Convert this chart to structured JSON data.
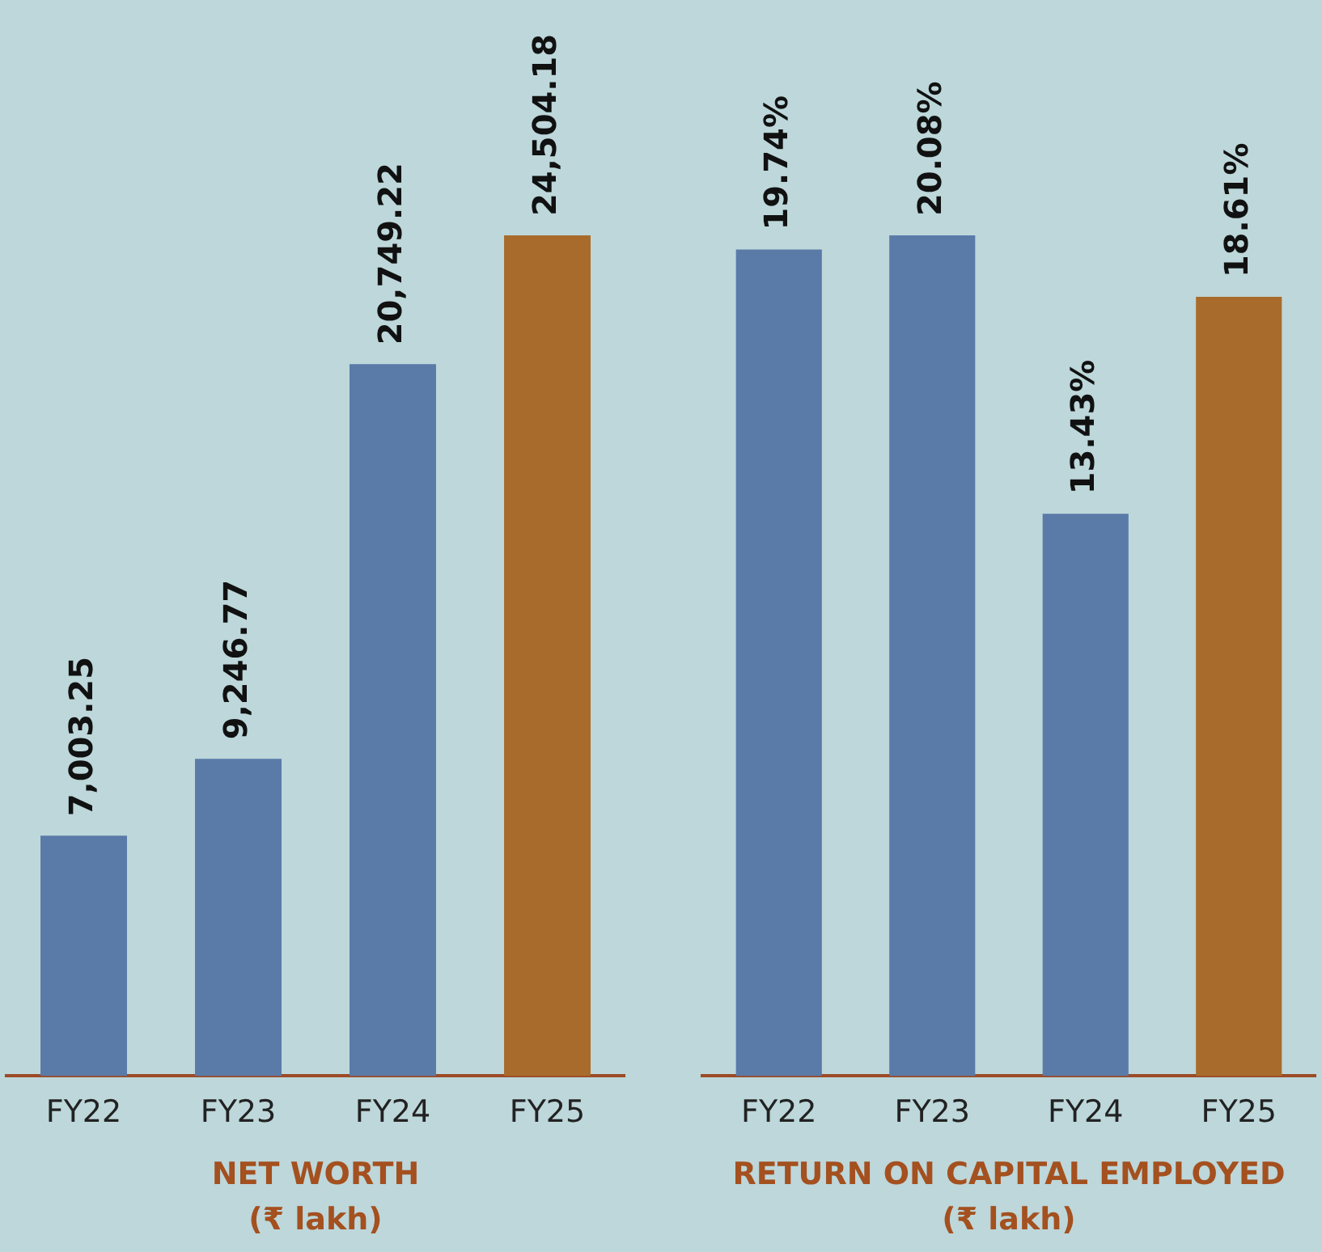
{
  "chart_data": [
    {
      "type": "bar",
      "title": "NET WORTH",
      "subtitle": "(₹ lakh)",
      "categories": [
        "FY22",
        "FY23",
        "FY24",
        "FY25"
      ],
      "values": [
        7003.25,
        9246.77,
        20749.22,
        24504.18
      ],
      "value_labels": [
        "7,003.25",
        "9,246.77",
        "20,749.22",
        "24,504.18"
      ],
      "colors": [
        "#5a7aa8",
        "#5a7aa8",
        "#5a7aa8",
        "#a86b2c"
      ],
      "tick_labels": "x"
    },
    {
      "type": "bar",
      "title": "RETURN ON CAPITAL EMPLOYED",
      "subtitle": "(₹ lakh)",
      "categories": [
        "FY22",
        "FY23",
        "FY24",
        "FY25"
      ],
      "values": [
        19.74,
        20.08,
        13.43,
        18.61
      ],
      "value_labels": [
        "19.74%",
        "20.08%",
        "13.43%",
        "18.61%"
      ],
      "colors": [
        "#5a7aa8",
        "#5a7aa8",
        "#5a7aa8",
        "#a86b2c"
      ],
      "tick_labels": "x"
    }
  ]
}
